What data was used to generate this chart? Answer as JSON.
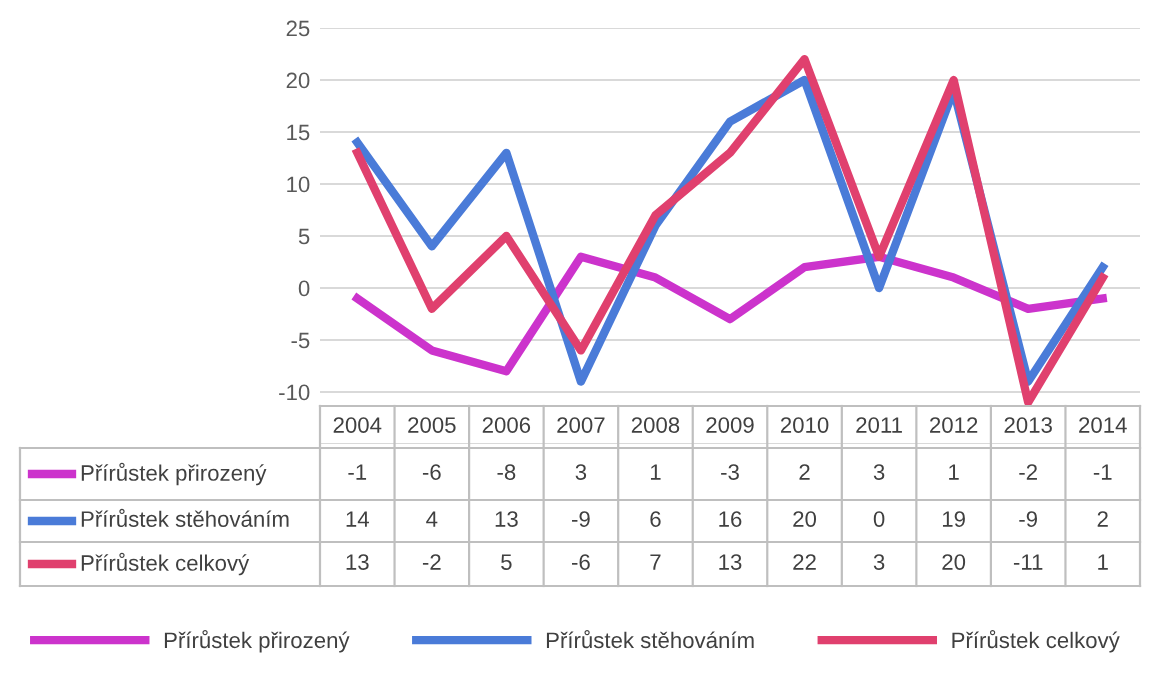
{
  "chart_data": {
    "type": "line",
    "categories": [
      "2004",
      "2005",
      "2006",
      "2007",
      "2008",
      "2009",
      "2010",
      "2011",
      "2012",
      "2013",
      "2014"
    ],
    "series": [
      {
        "name": "Přírůstek přirozený",
        "color": "#cc33cc",
        "values": [
          -1,
          -6,
          -8,
          3,
          1,
          -3,
          2,
          3,
          1,
          -2,
          -1
        ]
      },
      {
        "name": "Přírůstek stěhováním",
        "color": "#4a7bd8",
        "values": [
          14,
          4,
          13,
          -9,
          6,
          16,
          20,
          0,
          19,
          -9,
          2
        ]
      },
      {
        "name": "Přírůstek celkový",
        "color": "#e0406e",
        "values": [
          13,
          -2,
          5,
          -6,
          7,
          13,
          22,
          3,
          20,
          -11,
          1
        ]
      }
    ],
    "ylim": [
      -15,
      25
    ],
    "yticks": [
      {
        "value": -15,
        "label": null
      },
      -10,
      -5,
      0,
      5,
      10,
      15,
      20,
      25
    ],
    "data_labels": true,
    "legend": "bottom",
    "grid": "y",
    "marker": "none",
    "line_style": "solid"
  }
}
